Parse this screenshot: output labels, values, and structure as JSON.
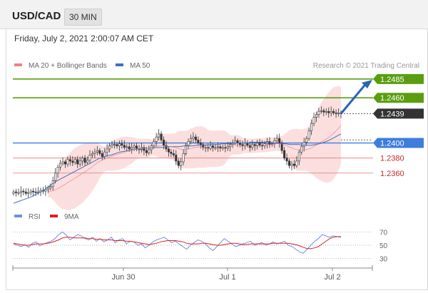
{
  "header": {
    "pair": "USD/CAD",
    "timeframe": "30 MIN"
  },
  "timestamp": "Friday, July 2, 2021 2:00:07 AM CET",
  "credit": "Research © 2021 Trading Central",
  "colors": {
    "up": "#2e7d32",
    "down": "#c62828",
    "ma50": "#3f6fbf",
    "band": "#f6b8b8",
    "ma20": "#e57373",
    "support": "#e57373",
    "resistance": "#5a9e10",
    "pivot": "#3d7ddb",
    "last": "#333333",
    "rsi": "#6f8fe0",
    "rsi_ma": "#e02020",
    "arrow": "#2b63b8"
  },
  "chart_data": [
    {
      "type": "candlestick",
      "symbol": "USD/CAD",
      "timeframe": "30 MIN",
      "legend": [
        {
          "name": "MA 20 + Bollinger Bands",
          "color": "#f08080"
        },
        {
          "name": "MA 50",
          "color": "#3f6fbf"
        }
      ],
      "x_labels": [
        "Jun 30",
        "Jul 1",
        "Jul 2"
      ],
      "ylim": [
        1.232,
        1.25
      ],
      "last_price": 1.2439,
      "levels": [
        {
          "value": 1.2485,
          "label": "1.2485",
          "kind": "resistance"
        },
        {
          "value": 1.246,
          "label": "1.2460",
          "kind": "resistance"
        },
        {
          "value": 1.2439,
          "label": "1.2439",
          "kind": "last"
        },
        {
          "value": 1.24,
          "label": "1.2400",
          "kind": "pivot"
        },
        {
          "value": 1.238,
          "label": "1.2380",
          "kind": "support"
        },
        {
          "value": 1.236,
          "label": "1.2360",
          "kind": "support"
        }
      ],
      "close_path": [
        1.2335,
        1.2334,
        1.2334,
        1.2336,
        1.2335,
        1.2333,
        1.2334,
        1.2336,
        1.2335,
        1.2334,
        1.2335,
        1.2337,
        1.2336,
        1.2338,
        1.234,
        1.2342,
        1.235,
        1.236,
        1.2368,
        1.2373,
        1.2375,
        1.2372,
        1.2378,
        1.2376,
        1.2374,
        1.2378,
        1.2372,
        1.2376,
        1.238,
        1.2374,
        1.2377,
        1.2384,
        1.2386,
        1.2388,
        1.239,
        1.2386,
        1.2382,
        1.2388,
        1.2392,
        1.2396,
        1.2398,
        1.2398,
        1.2396,
        1.2399,
        1.2397,
        1.2394,
        1.2395,
        1.2392,
        1.2394,
        1.2396,
        1.2392,
        1.2391,
        1.2394,
        1.239,
        1.2387,
        1.2391,
        1.2396,
        1.2402,
        1.2408,
        1.2412,
        1.2404,
        1.2397,
        1.2392,
        1.2388,
        1.2386,
        1.2384,
        1.2376,
        1.237,
        1.2375,
        1.2386,
        1.2397,
        1.2402,
        1.2406,
        1.2408,
        1.2404,
        1.24,
        1.2398,
        1.2394,
        1.2394,
        1.2393,
        1.2396,
        1.2394,
        1.2394,
        1.2395,
        1.2393,
        1.2394,
        1.2393,
        1.2395,
        1.2398,
        1.24,
        1.2403,
        1.24,
        1.2398,
        1.2396,
        1.24,
        1.2397,
        1.2394,
        1.2398,
        1.2396,
        1.24,
        1.2397,
        1.2396,
        1.2399,
        1.2402,
        1.2398,
        1.2399,
        1.2403,
        1.2406,
        1.24,
        1.239,
        1.238,
        1.2376,
        1.237,
        1.2372,
        1.237,
        1.2376,
        1.2388,
        1.2395,
        1.2401,
        1.2406,
        1.2416,
        1.2426,
        1.2434,
        1.2438,
        1.2442,
        1.2443,
        1.2441,
        1.2442,
        1.244,
        1.2442,
        1.244,
        1.2439,
        1.244,
        1.2439
      ],
      "ma50_path": [
        1.232,
        1.2322,
        1.2324,
        1.2326,
        1.2328,
        1.2331,
        1.2334,
        1.2337,
        1.2341,
        1.2345,
        1.2349,
        1.2352,
        1.2355,
        1.2358,
        1.2361,
        1.2364,
        1.2367,
        1.237,
        1.2373,
        1.2376,
        1.2379,
        1.2381,
        1.2383,
        1.2384,
        1.2386,
        1.2388,
        1.2389,
        1.239,
        1.2391,
        1.2392,
        1.2392,
        1.2393,
        1.2393,
        1.2394,
        1.2394,
        1.2394,
        1.2395,
        1.2395,
        1.2395,
        1.2395,
        1.2396,
        1.2396,
        1.2396,
        1.2397,
        1.2397,
        1.2397,
        1.2398,
        1.2398,
        1.2398,
        1.2399,
        1.2399,
        1.2399,
        1.24,
        1.24,
        1.24,
        1.24,
        1.2401,
        1.2401,
        1.2401,
        1.2401,
        1.2401,
        1.24,
        1.24,
        1.2399,
        1.2399,
        1.2398,
        1.2398,
        1.2398,
        1.2397,
        1.2397,
        1.2397,
        1.2398,
        1.2399,
        1.2401,
        1.2403,
        1.2406,
        1.2409,
        1.2412
      ],
      "rsi": {
        "legend": [
          {
            "name": "RSI",
            "color": "#6f8fe0"
          },
          {
            "name": "9MA",
            "color": "#e02020"
          }
        ],
        "ylim": [
          20,
          80
        ],
        "ticks": [
          70,
          50,
          30
        ],
        "rsi_path": [
          52,
          50,
          48,
          51,
          47,
          53,
          55,
          49,
          52,
          54,
          56,
          60,
          66,
          70,
          65,
          58,
          62,
          66,
          64,
          60,
          58,
          62,
          56,
          60,
          55,
          58,
          62,
          54,
          58,
          60,
          52,
          56,
          55,
          50,
          52,
          46,
          50,
          55,
          58,
          60,
          62,
          58,
          54,
          56,
          52,
          48,
          44,
          50,
          54,
          58,
          56,
          52,
          46,
          42,
          48,
          54,
          60,
          56,
          52,
          48,
          50,
          52,
          54,
          56,
          50,
          52,
          54,
          50,
          52,
          55,
          52,
          54,
          56,
          50,
          48,
          44,
          40,
          38,
          44,
          50,
          56,
          60,
          66,
          64,
          62,
          64,
          63,
          62
        ],
        "ma_path": [
          53,
          52,
          51,
          50,
          50,
          51,
          52,
          52,
          52,
          53,
          54,
          56,
          58,
          61,
          62,
          62,
          61,
          61,
          61,
          61,
          60,
          60,
          59,
          59,
          58,
          58,
          58,
          57,
          57,
          57,
          56,
          56,
          55,
          54,
          53,
          52,
          51,
          52,
          53,
          55,
          56,
          57,
          57,
          57,
          56,
          55,
          53,
          52,
          52,
          52,
          53,
          53,
          52,
          51,
          50,
          50,
          51,
          52,
          53,
          53,
          52,
          51,
          51,
          52,
          52,
          52,
          52,
          52,
          52,
          53,
          53,
          53,
          53,
          53,
          52,
          51,
          49,
          47,
          45,
          45,
          46,
          48,
          52,
          56,
          60,
          62,
          63,
          63
        ]
      }
    }
  ]
}
